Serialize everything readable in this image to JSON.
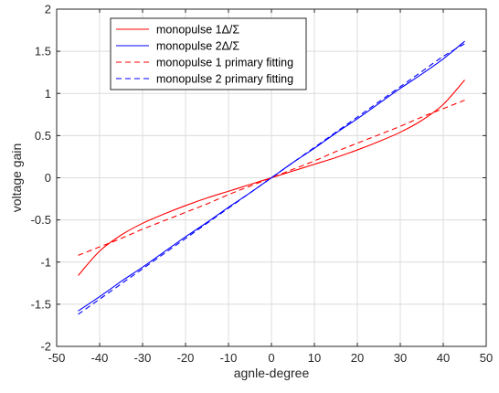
{
  "chart_data": {
    "type": "line",
    "title": "",
    "xlabel": "agnle-degree",
    "ylabel": "voltage gain",
    "xlim": [
      -50,
      50
    ],
    "ylim": [
      -2,
      2
    ],
    "x_ticks": [
      "-50",
      "-40",
      "-30",
      "-20",
      "-10",
      "0",
      "10",
      "20",
      "30",
      "40",
      "50"
    ],
    "y_ticks": [
      "-2",
      "-1.5",
      "-1",
      "-0.5",
      "0",
      "0.5",
      "1",
      "1.5",
      "2"
    ],
    "grid": true,
    "legend_position": "top-left",
    "x": [
      -45,
      -40,
      -35,
      -30,
      -25,
      -20,
      -15,
      -10,
      -5,
      0,
      5,
      10,
      15,
      20,
      25,
      30,
      35,
      40,
      45
    ],
    "series": [
      {
        "name": "monopulse 1Δ/Σ",
        "color": "#ff0000",
        "style": "solid",
        "values": [
          -1.16,
          -0.87,
          -0.68,
          -0.54,
          -0.43,
          -0.33,
          -0.24,
          -0.16,
          -0.08,
          0,
          0.08,
          0.16,
          0.24,
          0.33,
          0.43,
          0.54,
          0.68,
          0.87,
          1.16
        ]
      },
      {
        "name": "monopulse 2Δ/Σ",
        "color": "#0000ff",
        "style": "solid",
        "values": [
          -1.58,
          -1.41,
          -1.23,
          -1.06,
          -0.88,
          -0.7,
          -0.53,
          -0.35,
          -0.18,
          0,
          0.18,
          0.35,
          0.53,
          0.7,
          0.88,
          1.06,
          1.23,
          1.41,
          1.62
        ]
      },
      {
        "name": "monopulse 1 primary fitting",
        "color": "#ff0000",
        "style": "dashed",
        "values": [
          -0.92,
          -0.82,
          -0.72,
          -0.61,
          -0.51,
          -0.41,
          -0.31,
          -0.2,
          -0.1,
          0,
          0.1,
          0.2,
          0.31,
          0.41,
          0.51,
          0.61,
          0.72,
          0.82,
          0.92
        ]
      },
      {
        "name": "monopulse 2 primary fitting",
        "color": "#0000ff",
        "style": "dashed",
        "values": [
          -1.62,
          -1.44,
          -1.26,
          -1.08,
          -0.9,
          -0.72,
          -0.54,
          -0.36,
          -0.18,
          0,
          0.18,
          0.36,
          0.54,
          0.72,
          0.9,
          1.08,
          1.26,
          1.44,
          1.59
        ]
      }
    ]
  }
}
